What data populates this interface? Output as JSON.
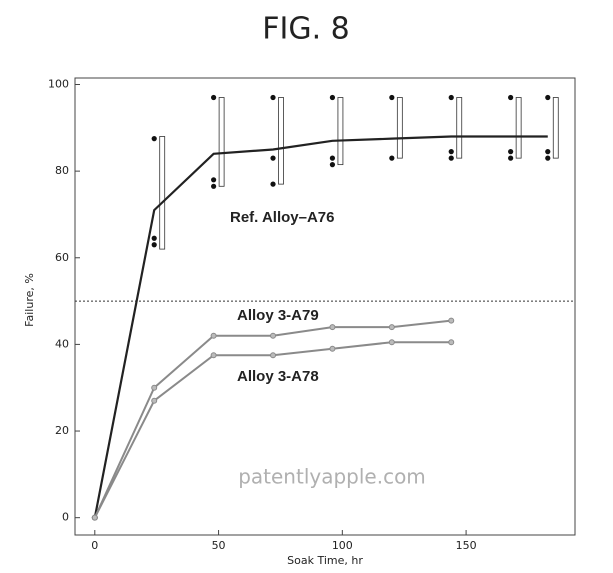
{
  "chart_data": {
    "type": "line",
    "title": "FIG. 8",
    "x_label": "Soak Time, hr",
    "y_label": "Failure, %",
    "xlim": [
      -8,
      194
    ],
    "ylim": [
      -4,
      101.5
    ],
    "xticks": [
      0,
      50,
      100,
      150
    ],
    "yticks": [
      0,
      20,
      40,
      60,
      80,
      100
    ],
    "reference_line": 50,
    "watermark": "patentlyapple.com",
    "series": [
      {
        "name": "Ref. Alloy–A76",
        "color": "#222222",
        "x": [
          0,
          24,
          48,
          72,
          96,
          120,
          144,
          168,
          183
        ],
        "values": [
          0,
          71,
          84,
          85,
          87,
          87.5,
          88,
          88,
          88
        ]
      },
      {
        "name": "Alloy 3-A79",
        "color": "#8a8a8a",
        "x": [
          0,
          24,
          48,
          72,
          96,
          120,
          144
        ],
        "values": [
          0,
          30,
          42,
          42,
          44,
          44,
          45.5
        ]
      },
      {
        "name": "Alloy 3-A78",
        "color": "#8a8a8a",
        "x": [
          0,
          24,
          48,
          72,
          96,
          120,
          144
        ],
        "values": [
          0,
          27,
          37.5,
          37.5,
          39,
          40.5,
          40.5
        ]
      }
    ],
    "observations": {
      "x": [
        24,
        24,
        24,
        48,
        48,
        48,
        72,
        72,
        72,
        96,
        96,
        96,
        120,
        120,
        144,
        144,
        144,
        168,
        168,
        168,
        183,
        183,
        183
      ],
      "values": [
        87.5,
        64.5,
        63,
        97,
        78,
        76.5,
        97,
        83,
        77,
        97,
        83,
        81.5,
        97,
        83,
        97,
        84.5,
        83,
        97,
        84.5,
        83,
        97,
        84.5,
        83
      ]
    },
    "ranges": {
      "x": [
        24,
        48,
        72,
        96,
        120,
        144,
        168,
        183
      ],
      "low": [
        62,
        76.5,
        77,
        81.5,
        83,
        83,
        83,
        83
      ],
      "high": [
        88,
        97,
        97,
        97,
        97,
        97,
        97,
        97
      ]
    }
  }
}
